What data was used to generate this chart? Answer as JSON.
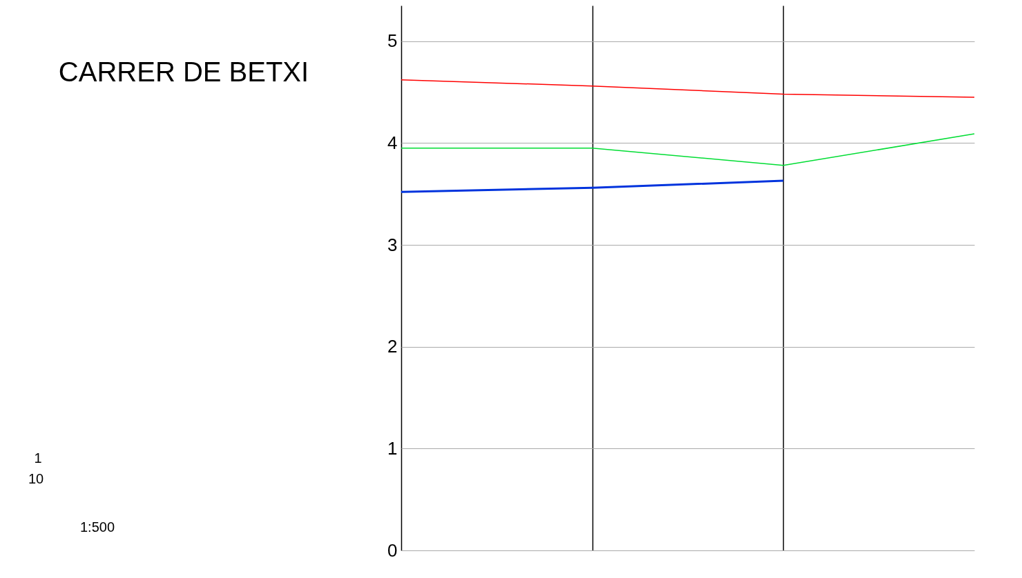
{
  "chart_data": {
    "type": "line",
    "title": "CARRER DE BETXI",
    "annotations": [
      "1",
      "10",
      "1:500"
    ],
    "categories": [
      null,
      null,
      null,
      null
    ],
    "series": [
      {
        "color": "#ff0000",
        "values": [
          4.62,
          4.56,
          4.48,
          4.45
        ]
      },
      {
        "color": "#00dd33",
        "values": [
          3.95,
          3.95,
          3.78,
          4.09
        ]
      },
      {
        "color": "#0033dd",
        "values": [
          3.52,
          3.56,
          3.63,
          null
        ]
      }
    ],
    "ylim": [
      0,
      5.35
    ],
    "yticks": [
      0,
      1,
      2,
      3,
      4,
      5
    ],
    "tick_labels": "y",
    "grid": true,
    "marker": "none",
    "line_style": "solid"
  }
}
